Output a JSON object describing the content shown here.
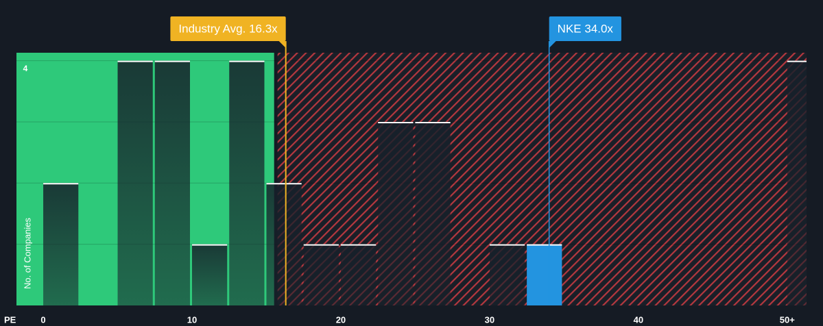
{
  "chart_data": {
    "type": "histogram",
    "bins": [
      0,
      2.5,
      5,
      7.5,
      10,
      12.5,
      15,
      17.5,
      20,
      22.5,
      25,
      27.5,
      30,
      32.5,
      35,
      37.5,
      40,
      42.5,
      45,
      47.5,
      50,
      52.5
    ],
    "values": [
      2,
      0,
      4,
      4,
      1,
      4,
      2,
      1,
      1,
      3,
      3,
      0,
      1,
      1,
      0,
      0,
      0,
      0,
      0,
      0,
      4
    ],
    "xlabel": "PE",
    "ylabel": "No. of Companies",
    "xlim": [
      -1.8,
      51.3
    ],
    "ylim": [
      0,
      4.13
    ],
    "xticks": [
      0,
      10,
      20,
      30,
      40,
      {
        "value": 50,
        "label": "50+"
      }
    ],
    "yticks": [
      4
    ],
    "ygrid": [
      1,
      2,
      3,
      4
    ],
    "annotations": [
      {
        "label": "Industry Avg. 16.3x",
        "value": 16.3,
        "color": "#f0b323"
      },
      {
        "label": "NKE 34.0x",
        "value": 34.0,
        "color": "#2394e0"
      }
    ]
  }
}
